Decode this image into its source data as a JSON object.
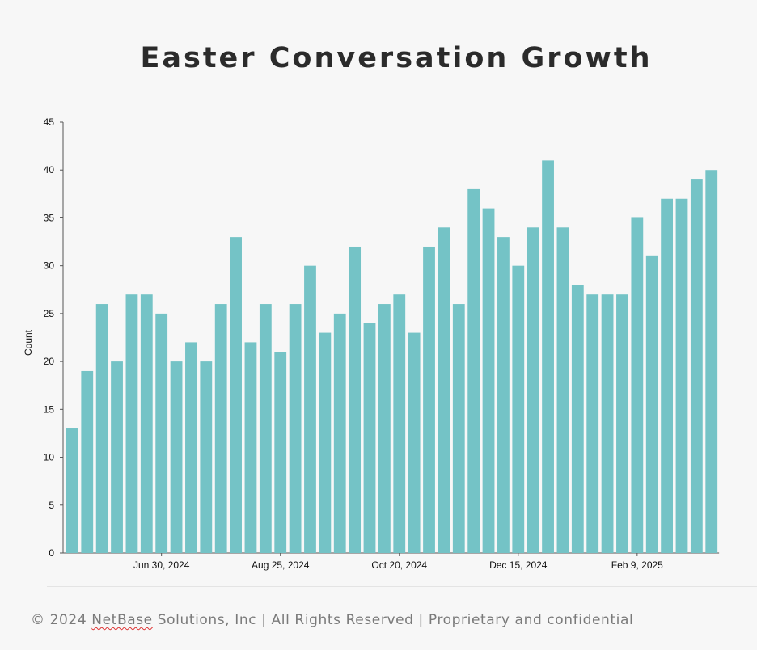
{
  "footer": {
    "copyright": "© 2024",
    "brand": "NetBase",
    "rest": " Solutions, Inc | All Rights Reserved | Proprietary and confidential"
  },
  "chart_data": {
    "type": "bar",
    "title": "Easter Conversation Growth",
    "xlabel": "",
    "ylabel": "Count",
    "ylim": [
      0,
      45
    ],
    "yticks": [
      0,
      5,
      10,
      15,
      20,
      25,
      30,
      35,
      40,
      45
    ],
    "bar_color": "#74c3c6",
    "x_tick_labels": [
      {
        "index": 6,
        "label": "Jun 30, 2024"
      },
      {
        "index": 14,
        "label": "Aug 25, 2024"
      },
      {
        "index": 22,
        "label": "Oct 20, 2024"
      },
      {
        "index": 30,
        "label": "Dec 15, 2024"
      },
      {
        "index": 38,
        "label": "Feb 9, 2025"
      }
    ],
    "values": [
      13,
      19,
      26,
      20,
      27,
      27,
      25,
      20,
      22,
      20,
      26,
      33,
      22,
      26,
      21,
      26,
      30,
      23,
      25,
      32,
      24,
      26,
      27,
      23,
      32,
      34,
      26,
      38,
      36,
      33,
      30,
      34,
      41,
      34,
      28,
      27,
      27,
      27,
      35,
      31,
      37,
      37,
      39,
      40
    ]
  }
}
